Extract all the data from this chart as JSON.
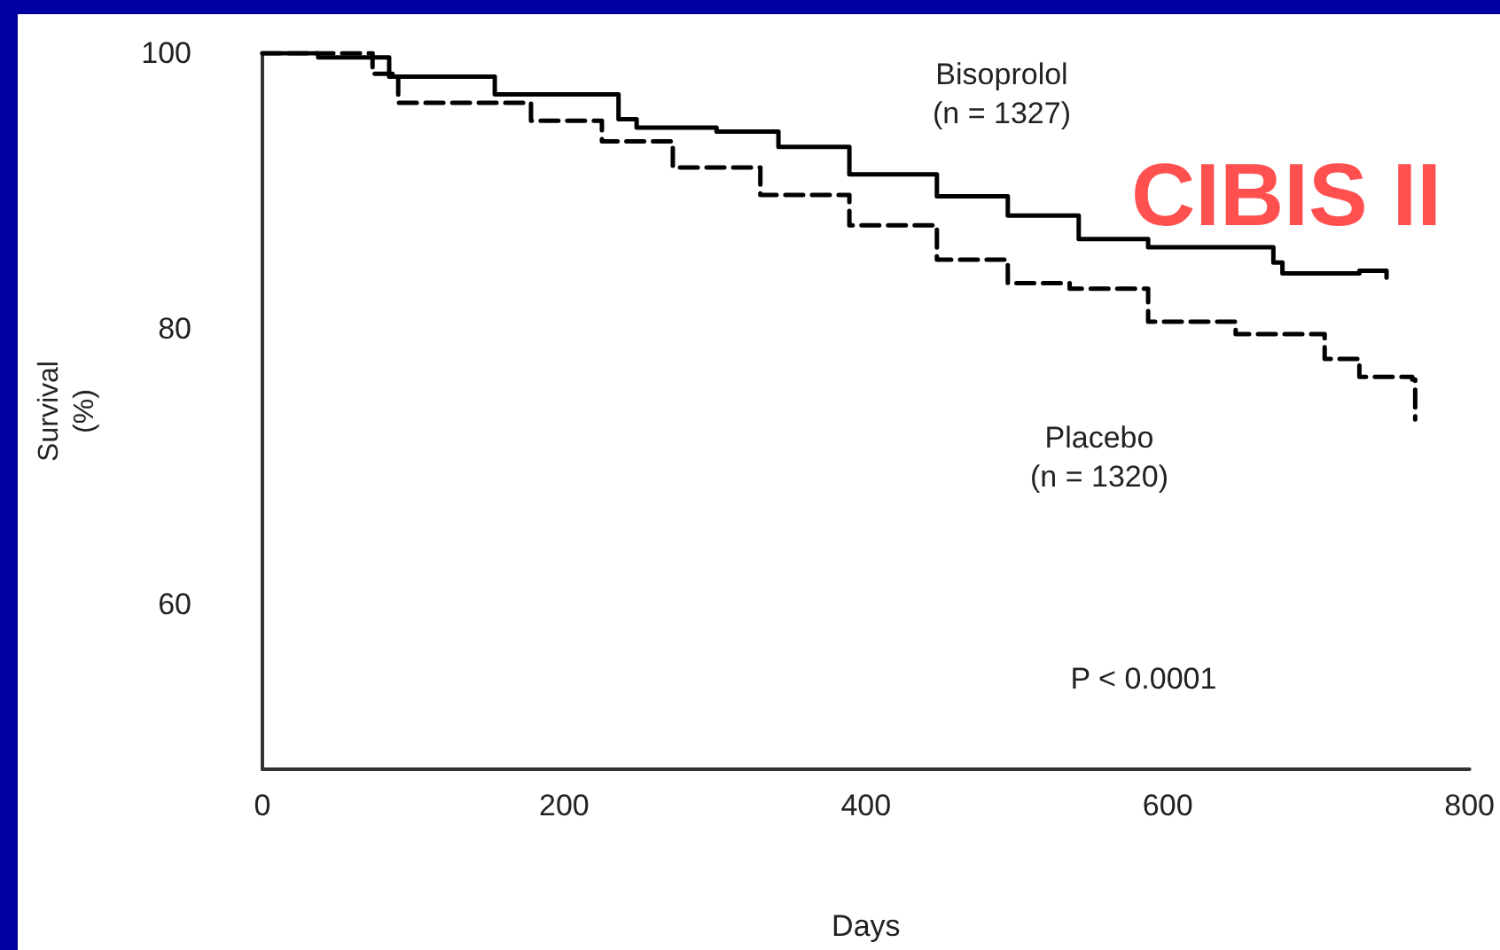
{
  "chart_data": {
    "type": "step",
    "title": "CIBIS II",
    "xlabel": "Days",
    "ylabel": "Survival\n(%)",
    "xlim": [
      0,
      800
    ],
    "xticks": [
      0,
      200,
      400,
      600,
      800
    ],
    "ylim": [
      48,
      100
    ],
    "yticks": [
      60,
      80,
      100
    ],
    "grid": false,
    "marker": "none",
    "series": [
      {
        "color": "#000000",
        "line_style": "solid",
        "x": [
          0,
          37,
          84,
          154,
          178,
          236,
          248,
          301,
          342,
          389,
          447,
          494,
          541,
          587,
          670,
          676,
          727,
          745
        ],
        "values": [
          100,
          99.7,
          98.3,
          97,
          97,
          95.2,
          94.6,
          94.3,
          93.2,
          91.2,
          89.6,
          88.2,
          86.5,
          85.9,
          84.8,
          84,
          84.2,
          83.7
        ]
      },
      {
        "color": "#000000",
        "line_style": "dashed",
        "x": [
          0,
          73,
          90,
          143,
          178,
          225,
          272,
          330,
          389,
          447,
          494,
          535,
          587,
          645,
          704,
          727,
          762,
          764
        ],
        "values": [
          100,
          98.5,
          96.4,
          96.4,
          95.1,
          93.6,
          91.7,
          89.7,
          87.5,
          85,
          83.3,
          82.9,
          80.5,
          79.6,
          77.8,
          76.5,
          76.3,
          73.4
        ]
      }
    ],
    "annotations": [
      "Bisoprolol\n(n = 1327)",
      "Placebo\n(n = 1320)",
      "P < 0.0001"
    ]
  }
}
